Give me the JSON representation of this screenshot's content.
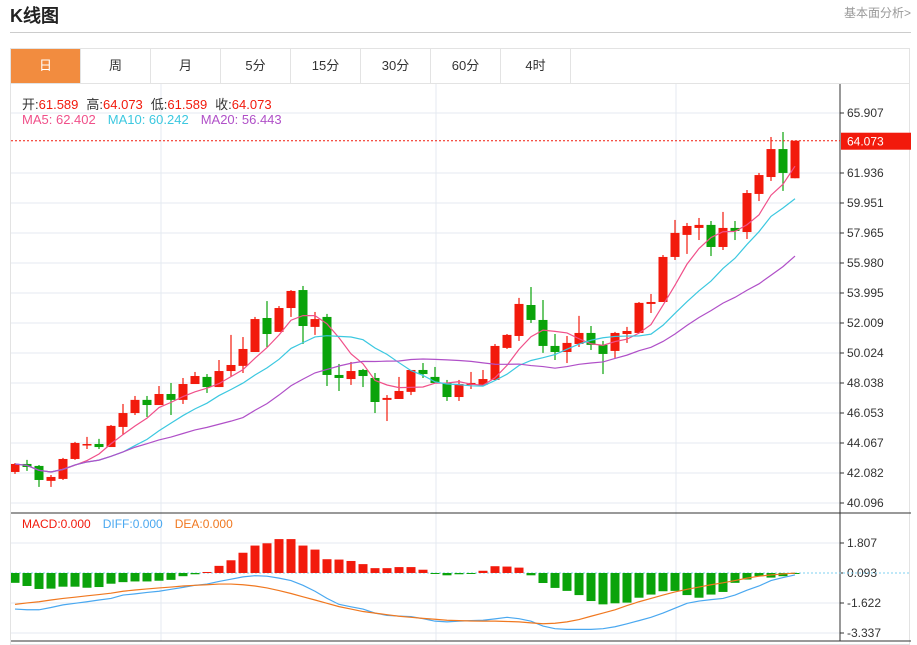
{
  "header": {
    "title": "K线图",
    "fundamentals_link": "基本面分析>"
  },
  "tabs": [
    {
      "label": "日",
      "active": true
    },
    {
      "label": "周"
    },
    {
      "label": "月"
    },
    {
      "label": "5分"
    },
    {
      "label": "15分"
    },
    {
      "label": "30分"
    },
    {
      "label": "60分"
    },
    {
      "label": "4时"
    }
  ],
  "ohlc": {
    "open_label": "开:",
    "open": "61.589",
    "high_label": "高:",
    "high": "64.073",
    "low_label": "低:",
    "low": "61.589",
    "close_label": "收:",
    "close": "64.073"
  },
  "ma": {
    "ma5_label": "MA5: ",
    "ma5": "62.402",
    "ma10_label": "MA10: ",
    "ma10": "60.242",
    "ma20_label": "MA20: ",
    "ma20": "56.443"
  },
  "macd_info": {
    "macd": "MACD:0.000",
    "diff": "DIFF:0.000",
    "dea": "DEA:0.000"
  },
  "colors": {
    "up": "#f21a0c",
    "down": "#0aa30a",
    "ma5": "#f0508a",
    "ma10": "#3cc8e0",
    "ma20": "#b050c8",
    "diff": "#4aa8f0",
    "dea": "#f07820",
    "accent": "#f28c3f"
  },
  "chart_data": [
    {
      "type": "candlestick",
      "title": "",
      "y_ticks": [
        "65.907",
        "61.936",
        "59.951",
        "57.965",
        "55.980",
        "53.995",
        "52.009",
        "50.024",
        "48.038",
        "46.053",
        "44.067",
        "42.082",
        "40.096"
      ],
      "ylim": [
        39.5,
        67.7
      ],
      "last_price": "64.073",
      "ma_periods": [
        5,
        10,
        20
      ],
      "candles": [
        [
          42.15,
          42.74,
          42.02,
          42.68
        ],
        [
          42.68,
          42.95,
          42.22,
          42.48
        ],
        [
          42.55,
          42.61,
          41.16,
          41.62
        ],
        [
          41.56,
          41.95,
          41.16,
          41.82
        ],
        [
          41.69,
          43.08,
          41.62,
          43.01
        ],
        [
          43.01,
          44.14,
          42.95,
          44.07
        ],
        [
          43.94,
          44.47,
          43.67,
          44.0
        ],
        [
          44.0,
          44.34,
          43.67,
          43.8
        ],
        [
          43.8,
          45.26,
          43.8,
          45.2
        ],
        [
          45.13,
          46.65,
          44.6,
          46.05
        ],
        [
          46.05,
          47.18,
          45.92,
          46.92
        ],
        [
          46.92,
          47.18,
          45.79,
          46.58
        ],
        [
          46.58,
          47.84,
          46.58,
          47.31
        ],
        [
          47.31,
          48.04,
          45.92,
          46.92
        ],
        [
          46.92,
          48.37,
          46.65,
          47.97
        ],
        [
          47.97,
          48.77,
          47.97,
          48.5
        ],
        [
          48.44,
          48.63,
          47.38,
          47.77
        ],
        [
          47.77,
          49.56,
          47.77,
          48.83
        ],
        [
          48.83,
          51.22,
          48.44,
          49.23
        ],
        [
          49.17,
          51.08,
          48.7,
          50.29
        ],
        [
          50.09,
          52.41,
          50.09,
          52.27
        ],
        [
          52.34,
          53.46,
          50.42,
          51.28
        ],
        [
          51.42,
          53.13,
          51.42,
          53.0
        ],
        [
          53.0,
          54.19,
          52.41,
          54.13
        ],
        [
          54.19,
          54.46,
          50.62,
          51.81
        ],
        [
          51.75,
          52.74,
          51.22,
          52.27
        ],
        [
          52.41,
          52.61,
          47.84,
          48.57
        ],
        [
          48.57,
          49.3,
          47.51,
          48.37
        ],
        [
          48.3,
          49.43,
          47.91,
          48.83
        ],
        [
          48.9,
          48.97,
          47.77,
          48.5
        ],
        [
          48.37,
          48.7,
          46.05,
          46.78
        ],
        [
          46.92,
          47.24,
          45.52,
          47.05
        ],
        [
          46.98,
          48.44,
          46.98,
          47.51
        ],
        [
          47.45,
          48.9,
          47.24,
          48.9
        ],
        [
          48.9,
          49.36,
          48.37,
          48.63
        ],
        [
          48.44,
          49.1,
          48.04,
          48.04
        ],
        [
          48.04,
          48.24,
          46.85,
          47.11
        ],
        [
          47.11,
          48.24,
          46.85,
          47.97
        ],
        [
          47.91,
          48.77,
          47.64,
          48.04
        ],
        [
          47.91,
          48.9,
          47.91,
          48.3
        ],
        [
          48.24,
          50.62,
          48.24,
          50.49
        ],
        [
          50.36,
          51.28,
          50.29,
          51.22
        ],
        [
          51.15,
          53.67,
          50.82,
          53.27
        ],
        [
          53.2,
          54.39,
          52.01,
          52.21
        ],
        [
          52.21,
          53.53,
          50.03,
          50.49
        ],
        [
          50.49,
          51.28,
          49.56,
          50.09
        ],
        [
          50.09,
          51.15,
          49.36,
          50.69
        ],
        [
          50.62,
          52.48,
          50.42,
          51.35
        ],
        [
          51.35,
          51.81,
          50.22,
          50.56
        ],
        [
          50.56,
          50.82,
          48.63,
          49.96
        ],
        [
          50.16,
          51.42,
          49.7,
          51.35
        ],
        [
          51.28,
          51.75,
          50.69,
          51.48
        ],
        [
          51.35,
          53.4,
          51.35,
          53.34
        ],
        [
          53.27,
          53.93,
          52.67,
          53.4
        ],
        [
          53.4,
          56.51,
          53.4,
          56.38
        ],
        [
          56.38,
          58.83,
          56.18,
          57.97
        ],
        [
          57.84,
          58.63,
          56.58,
          58.43
        ],
        [
          58.3,
          58.96,
          57.5,
          58.5
        ],
        [
          58.5,
          58.76,
          56.44,
          57.04
        ],
        [
          57.04,
          59.36,
          56.84,
          58.3
        ],
        [
          58.3,
          58.76,
          57.5,
          58.1
        ],
        [
          58.03,
          60.81,
          57.57,
          60.61
        ],
        [
          60.55,
          61.94,
          60.08,
          61.8
        ],
        [
          61.67,
          64.32,
          61.41,
          63.52
        ],
        [
          63.52,
          64.65,
          60.75,
          61.94
        ],
        [
          61.589,
          64.073,
          61.589,
          64.073
        ]
      ]
    },
    {
      "type": "macd",
      "title": "",
      "y_ticks": [
        "1.807",
        "0.093",
        "-1.622",
        "-3.337"
      ],
      "histogram": [
        -0.47,
        -0.65,
        -0.82,
        -0.8,
        -0.69,
        -0.69,
        -0.75,
        -0.71,
        -0.52,
        -0.43,
        -0.39,
        -0.39,
        -0.35,
        -0.3,
        -0.09,
        0.02,
        0.15,
        0.5,
        0.82,
        1.25,
        1.66,
        1.79,
        2.03,
        2.03,
        1.66,
        1.43,
        0.88,
        0.86,
        0.78,
        0.6,
        0.37,
        0.37,
        0.43,
        0.43,
        0.28,
        0.09,
        -0.04,
        0.02,
        0.09,
        0.22,
        0.48,
        0.46,
        0.4,
        -0.04,
        -0.48,
        -0.76,
        -0.93,
        -1.17,
        -1.51,
        -1.7,
        -1.64,
        -1.6,
        -1.32,
        -1.14,
        -0.95,
        -0.93,
        -1.17,
        -1.32,
        -1.14,
        -0.99,
        -0.47,
        -0.28,
        -0.09,
        -0.17,
        -0.09,
        0.09
      ],
      "diff": [
        -1.97,
        -2.01,
        -2.01,
        -1.88,
        -1.73,
        -1.64,
        -1.55,
        -1.45,
        -1.36,
        -1.17,
        -1.1,
        -1.02,
        -0.95,
        -0.84,
        -0.73,
        -0.61,
        -0.54,
        -0.39,
        -0.26,
        -0.13,
        -0.06,
        -0.09,
        -0.2,
        -0.34,
        -0.61,
        -0.95,
        -1.36,
        -1.7,
        -1.84,
        -1.97,
        -2.2,
        -2.33,
        -2.37,
        -2.4,
        -2.52,
        -2.66,
        -2.7,
        -2.66,
        -2.63,
        -2.61,
        -2.53,
        -2.44,
        -2.52,
        -2.66,
        -2.94,
        -3.09,
        -3.13,
        -3.13,
        -3.13,
        -3.09,
        -2.98,
        -2.81,
        -2.63,
        -2.44,
        -2.2,
        -1.92,
        -1.64,
        -1.51,
        -1.43,
        -1.36,
        -1.17,
        -0.89,
        -0.65,
        -0.34,
        -0.17,
        -0.02
      ],
      "dea": [
        -1.7,
        -1.62,
        -1.55,
        -1.45,
        -1.36,
        -1.29,
        -1.21,
        -1.14,
        -1.06,
        -0.95,
        -0.88,
        -0.82,
        -0.76,
        -0.71,
        -0.65,
        -0.61,
        -0.58,
        -0.54,
        -0.54,
        -0.58,
        -0.65,
        -0.76,
        -0.91,
        -1.08,
        -1.27,
        -1.45,
        -1.64,
        -1.83,
        -1.97,
        -2.11,
        -2.2,
        -2.29,
        -2.38,
        -2.44,
        -2.5,
        -2.55,
        -2.61,
        -2.63,
        -2.65,
        -2.66,
        -2.66,
        -2.68,
        -2.7,
        -2.76,
        -2.81,
        -2.78,
        -2.7,
        -2.57,
        -2.38,
        -2.2,
        -2.01,
        -1.77,
        -1.55,
        -1.36,
        -1.17,
        -0.99,
        -0.84,
        -0.71,
        -0.58,
        -0.47,
        -0.34,
        -0.2,
        -0.09,
        -0.02,
        0.04,
        0.09
      ]
    }
  ]
}
